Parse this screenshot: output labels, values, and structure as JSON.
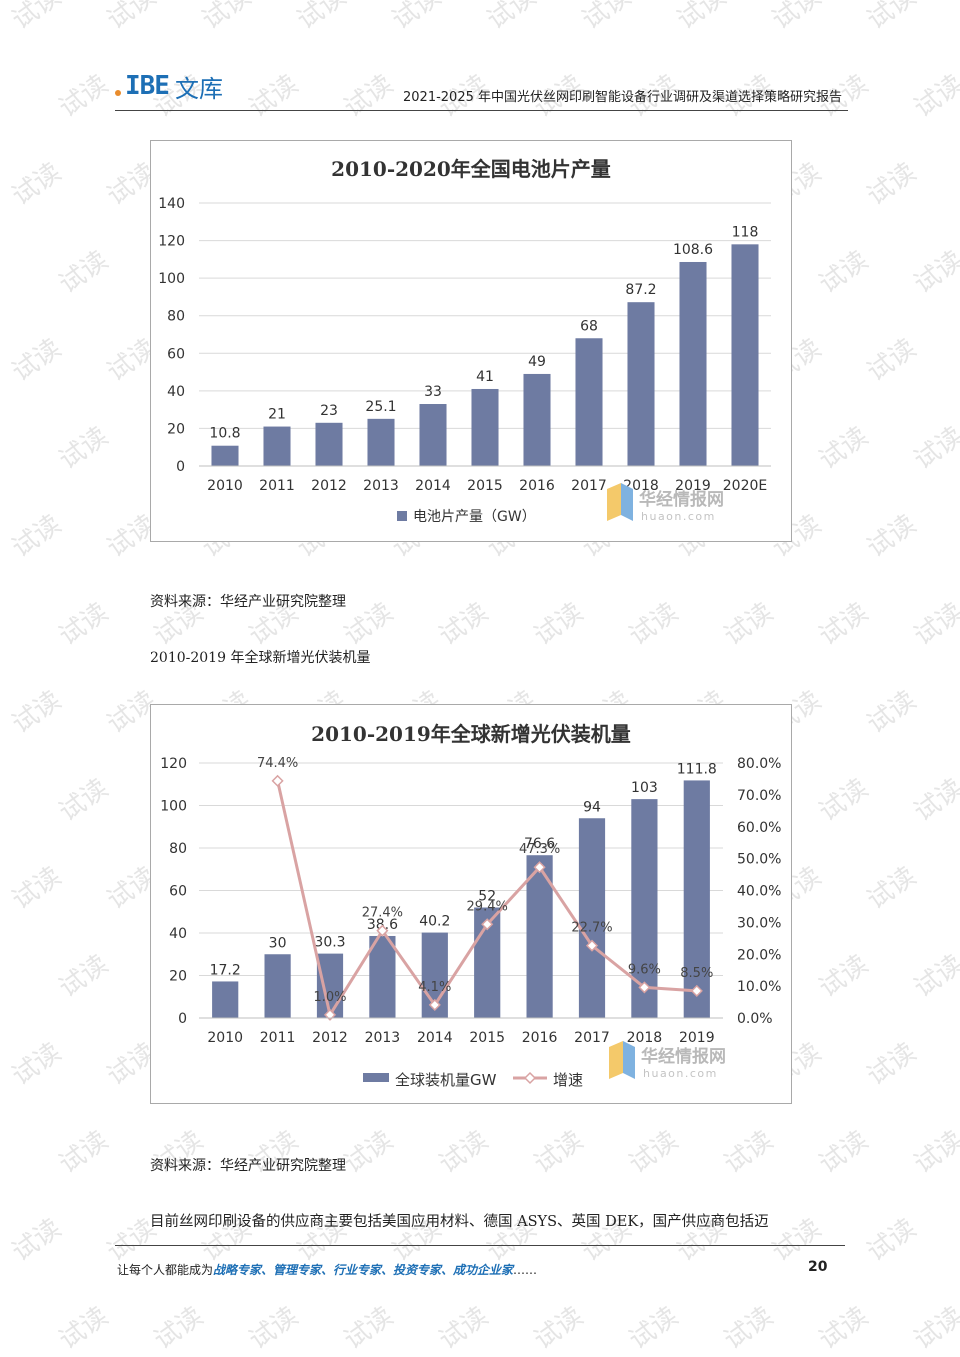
{
  "header": {
    "logo_mark": "IBE",
    "logo_name": "文库",
    "doc_title": "2021-2025 年中国光伏丝网印刷智能设备行业调研及渠道选择策略研究报告"
  },
  "watermark": {
    "text": "试读",
    "color": "#cfcfcf"
  },
  "charts_meta": {
    "bar_color": "#6e7ba2",
    "line_color": "#d9a3a3",
    "brand": "华经情报网",
    "brand_url": "huaon.com"
  },
  "chart_data": [
    {
      "type": "bar",
      "title": "2010-2020年全国电池片产量",
      "categories": [
        "2010",
        "2011",
        "2012",
        "2013",
        "2014",
        "2015",
        "2016",
        "2017",
        "2018",
        "2019",
        "2020E"
      ],
      "series": [
        {
          "name": "电池片产量（GW）",
          "values": [
            10.8,
            21,
            23,
            25.1,
            33,
            41,
            49,
            68,
            87.2,
            108.6,
            118
          ]
        }
      ],
      "y_ticks": [
        "0",
        "20",
        "40",
        "60",
        "80",
        "100",
        "120",
        "140"
      ],
      "ylim": [
        0,
        140
      ],
      "grid": true,
      "legend": "bottom"
    },
    {
      "type": "bar",
      "title": "2010-2019年全球新增光伏装机量",
      "categories": [
        "2010",
        "2011",
        "2012",
        "2013",
        "2014",
        "2015",
        "2016",
        "2017",
        "2018",
        "2019"
      ],
      "series": [
        {
          "name": "全球装机量GW",
          "type": "bar",
          "values": [
            17.2,
            30,
            30.3,
            38.6,
            40.2,
            52,
            76.6,
            94,
            103,
            111.8
          ]
        },
        {
          "name": "增速",
          "type": "line",
          "axis": "right",
          "values": [
            null,
            74.4,
            1.0,
            27.4,
            4.1,
            29.4,
            47.3,
            22.7,
            9.6,
            8.5
          ],
          "labels": [
            "",
            "74.4%",
            "1.0%",
            "27.4%",
            "4.1%",
            "29.4%",
            "47.3%",
            "22.7%",
            "9.6%",
            "8.5%"
          ]
        }
      ],
      "y_ticks": [
        "0",
        "20",
        "40",
        "60",
        "80",
        "100",
        "120"
      ],
      "y2_ticks": [
        "0.0%",
        "10.0%",
        "20.0%",
        "30.0%",
        "40.0%",
        "50.0%",
        "60.0%",
        "70.0%",
        "80.0%"
      ],
      "ylim": [
        0,
        120
      ],
      "y2lim": [
        0,
        80
      ],
      "grid": true,
      "legend": "bottom"
    }
  ],
  "captions": {
    "source1": "资料来源：华经产业研究院整理",
    "chart2_heading": "2010-2019 年全球新增光伏装机量",
    "source2": "资料来源：华经产业研究院整理"
  },
  "body_text": "目前丝网印刷设备的供应商主要包括美国应用材料、德国 ASYS、英国 DEK，国产供应商包括迈",
  "footer": {
    "prefix": "让每个人都能成为",
    "highlight": "战略专家、管理专家、行业专家、投资专家、成功企业家",
    "suffix": "……",
    "page_number": "20"
  }
}
